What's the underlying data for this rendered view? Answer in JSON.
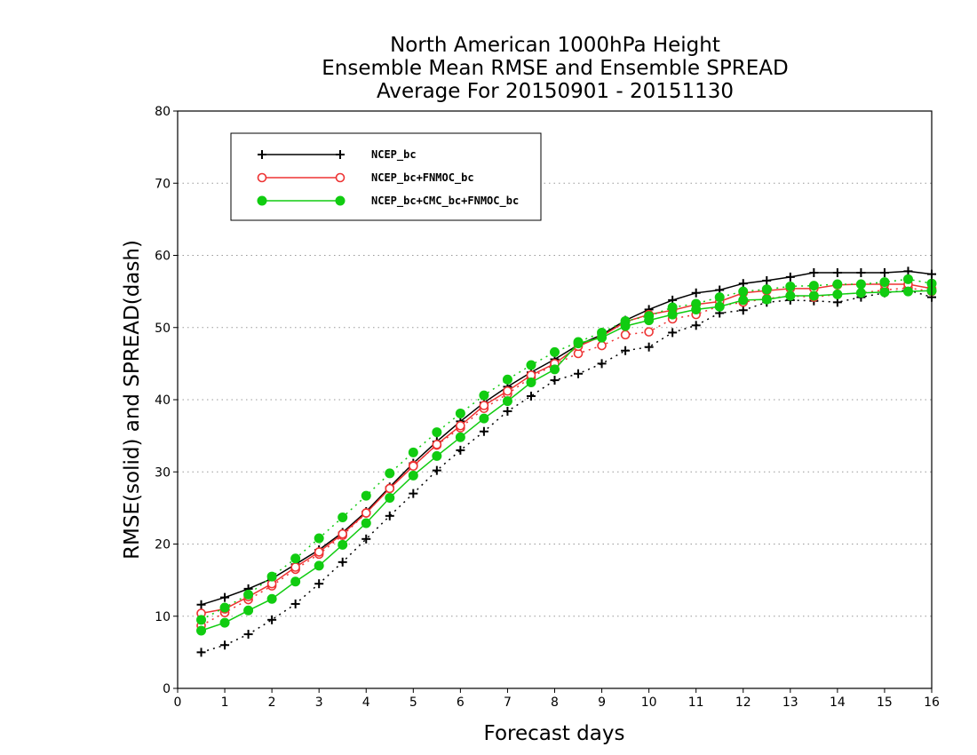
{
  "chart_data": {
    "type": "line",
    "title_lines": [
      "North American 1000hPa Height",
      "Ensemble Mean RMSE and Ensemble SPREAD",
      "Average For 20150901 - 20151130"
    ],
    "xlabel": "Forecast days",
    "ylabel": "RMSE(solid) and SPREAD(dash)",
    "xlim": [
      0,
      16
    ],
    "ylim": [
      0,
      80
    ],
    "x_ticks": [
      "0",
      "1",
      "2",
      "3",
      "4",
      "5",
      "6",
      "7",
      "8",
      "9",
      "10",
      "11",
      "12",
      "13",
      "14",
      "15",
      "16"
    ],
    "y_ticks": [
      "0",
      "10",
      "20",
      "30",
      "40",
      "50",
      "60",
      "70",
      "80"
    ],
    "grid": "horizontal dotted",
    "legend_position": "top-left",
    "x": [
      0.5,
      1,
      1.5,
      2,
      2.5,
      3,
      3.5,
      4,
      4.5,
      5,
      5.5,
      6,
      6.5,
      7,
      7.5,
      8,
      8.5,
      9,
      9.5,
      10,
      10.5,
      11,
      11.5,
      12,
      12.5,
      13,
      13.5,
      14,
      14.5,
      15,
      15.5,
      16
    ],
    "series": [
      {
        "name": "NCEP_bc",
        "color": "#000000",
        "marker": "plus",
        "rmse": [
          11.6,
          12.6,
          13.8,
          15.2,
          17.2,
          19.2,
          21.6,
          24.5,
          27.9,
          31.2,
          34.2,
          37,
          39.6,
          41.8,
          43.8,
          45.6,
          47.6,
          49,
          51,
          52.5,
          53.8,
          54.8,
          55.2,
          56.1,
          56.5,
          57,
          57.6,
          57.6,
          57.6,
          57.6,
          57.8,
          57.4
        ],
        "spread": [
          5,
          6,
          7.5,
          9.5,
          11.7,
          14.5,
          17.5,
          20.7,
          23.9,
          27,
          30.2,
          33,
          35.6,
          38.4,
          40.5,
          42.7,
          43.6,
          45,
          46.8,
          47.3,
          49.3,
          50.3,
          52,
          52.4,
          53.5,
          53.8,
          53.7,
          53.5,
          54.2,
          54.8,
          55.2,
          54.2
        ]
      },
      {
        "name": "NCEP_bc+FNMOC_bc",
        "color": "#ee3333",
        "marker": "open-circle",
        "rmse": [
          10.4,
          11,
          12.7,
          14.5,
          16.8,
          18.9,
          21.4,
          24.3,
          27.7,
          30.8,
          33.8,
          36.4,
          39.2,
          41.2,
          43.4,
          45,
          47.4,
          48.8,
          50.8,
          51.8,
          52.4,
          53.2,
          53.6,
          54.8,
          55.1,
          55.4,
          55.4,
          55.9,
          56,
          56,
          56,
          55.4
        ],
        "spread": [
          8.7,
          10.5,
          12.3,
          14.2,
          16.5,
          18.6,
          21.2,
          24.3,
          27.7,
          30.9,
          33.7,
          36.1,
          38.8,
          40.8,
          43.1,
          44.9,
          46.4,
          47.5,
          49,
          49.4,
          51.2,
          51.8,
          53,
          53.5,
          54,
          54.4,
          54.2,
          54.6,
          54.8,
          55.2,
          55.5,
          55
        ]
      },
      {
        "name": "NCEP_bc+CMC_bc+FNMOC_bc",
        "color": "#11cc11",
        "marker": "filled-circle",
        "rmse": [
          8,
          9.1,
          10.8,
          12.4,
          14.8,
          17,
          19.9,
          22.9,
          26.4,
          29.5,
          32.2,
          34.8,
          37.4,
          39.8,
          42.4,
          44.2,
          47.8,
          48.6,
          50.2,
          51,
          51.8,
          52.5,
          52.9,
          53.8,
          53.9,
          54.4,
          54.4,
          54.6,
          54.8,
          54.9,
          55,
          55.1
        ],
        "spread": [
          9.5,
          11.2,
          13,
          15.5,
          18,
          20.8,
          23.7,
          26.7,
          29.8,
          32.7,
          35.5,
          38.1,
          40.6,
          42.8,
          44.8,
          46.6,
          48,
          49.3,
          50.9,
          51.6,
          52.8,
          53.3,
          54.2,
          55,
          55.3,
          55.7,
          55.8,
          56,
          56,
          56.3,
          56.7,
          56.1
        ]
      }
    ]
  }
}
